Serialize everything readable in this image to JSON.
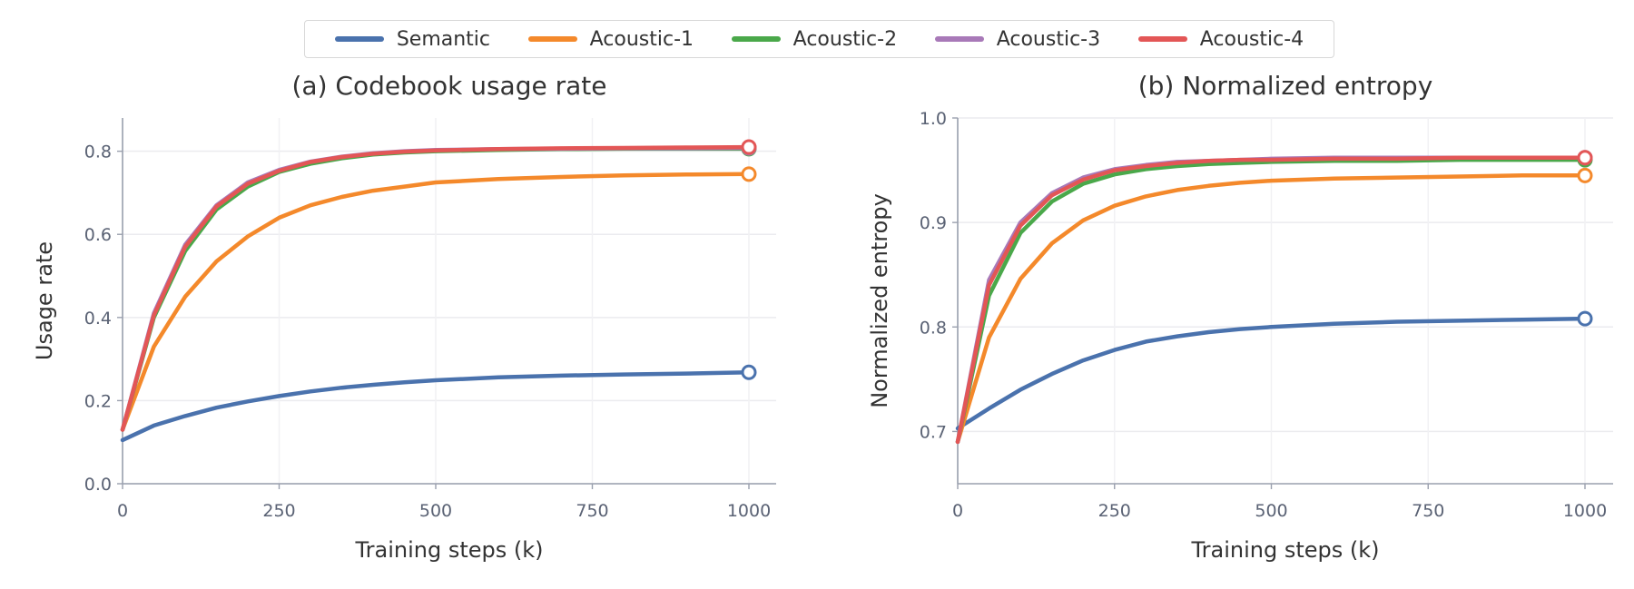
{
  "legend": [
    {
      "label": "Semantic",
      "color": "#4a72ad"
    },
    {
      "label": "Acoustic-1",
      "color": "#f4892b"
    },
    {
      "label": "Acoustic-2",
      "color": "#4aa84a"
    },
    {
      "label": "Acoustic-3",
      "color": "#a879b8"
    },
    {
      "label": "Acoustic-4",
      "color": "#e35656"
    }
  ],
  "chart_data": [
    {
      "type": "line",
      "title": "(a) Codebook usage rate",
      "xlabel": "Training steps (k)",
      "ylabel": "Usage rate",
      "xlim": [
        0,
        1040
      ],
      "ylim": [
        0,
        0.88
      ],
      "xticks": [
        0,
        250,
        500,
        750,
        1000
      ],
      "yticks": [
        0.0,
        0.2,
        0.4,
        0.6,
        0.8
      ],
      "ytick_labels": [
        "0.0",
        "0.2",
        "0.4",
        "0.6",
        "0.8"
      ],
      "grid": true,
      "x": [
        0,
        50,
        100,
        150,
        200,
        250,
        300,
        350,
        400,
        450,
        500,
        600,
        700,
        800,
        900,
        1000
      ],
      "series": [
        {
          "name": "Semantic",
          "color": "#4a72ad",
          "values": [
            0.105,
            0.14,
            0.163,
            0.183,
            0.198,
            0.211,
            0.222,
            0.231,
            0.238,
            0.244,
            0.249,
            0.256,
            0.26,
            0.263,
            0.265,
            0.268
          ]
        },
        {
          "name": "Acoustic-1",
          "color": "#f4892b",
          "values": [
            0.13,
            0.33,
            0.45,
            0.535,
            0.595,
            0.64,
            0.67,
            0.69,
            0.705,
            0.715,
            0.725,
            0.733,
            0.738,
            0.742,
            0.744,
            0.745
          ]
        },
        {
          "name": "Acoustic-2",
          "color": "#4aa84a",
          "values": [
            0.13,
            0.4,
            0.56,
            0.66,
            0.715,
            0.75,
            0.77,
            0.783,
            0.792,
            0.797,
            0.8,
            0.803,
            0.805,
            0.806,
            0.806,
            0.806
          ]
        },
        {
          "name": "Acoustic-3",
          "color": "#a879b8",
          "values": [
            0.13,
            0.41,
            0.575,
            0.67,
            0.725,
            0.755,
            0.775,
            0.787,
            0.795,
            0.8,
            0.803,
            0.805,
            0.806,
            0.807,
            0.807,
            0.808
          ]
        },
        {
          "name": "Acoustic-4",
          "color": "#e35656",
          "values": [
            0.13,
            0.405,
            0.57,
            0.667,
            0.722,
            0.753,
            0.774,
            0.786,
            0.794,
            0.799,
            0.802,
            0.805,
            0.807,
            0.808,
            0.809,
            0.81
          ]
        }
      ]
    },
    {
      "type": "line",
      "title": "(b) Normalized entropy",
      "xlabel": "Training steps (k)",
      "ylabel": "Normalized entropy",
      "xlim": [
        0,
        1040
      ],
      "ylim": [
        0.65,
        1.0
      ],
      "xticks": [
        0,
        250,
        500,
        750,
        1000
      ],
      "yticks": [
        0.7,
        0.8,
        0.9,
        1.0
      ],
      "ytick_labels": [
        "0.7",
        "0.8",
        "0.9",
        "1.0"
      ],
      "grid": true,
      "x": [
        0,
        50,
        100,
        150,
        200,
        250,
        300,
        350,
        400,
        450,
        500,
        600,
        700,
        800,
        900,
        1000
      ],
      "series": [
        {
          "name": "Semantic",
          "color": "#4a72ad",
          "values": [
            0.703,
            0.722,
            0.74,
            0.755,
            0.768,
            0.778,
            0.786,
            0.791,
            0.795,
            0.798,
            0.8,
            0.803,
            0.805,
            0.806,
            0.807,
            0.808
          ]
        },
        {
          "name": "Acoustic-1",
          "color": "#f4892b",
          "values": [
            0.69,
            0.79,
            0.846,
            0.88,
            0.902,
            0.916,
            0.925,
            0.931,
            0.935,
            0.938,
            0.94,
            0.942,
            0.943,
            0.944,
            0.945,
            0.945
          ]
        },
        {
          "name": "Acoustic-2",
          "color": "#4aa84a",
          "values": [
            0.69,
            0.83,
            0.89,
            0.92,
            0.937,
            0.946,
            0.951,
            0.954,
            0.956,
            0.957,
            0.958,
            0.959,
            0.959,
            0.96,
            0.96,
            0.96
          ]
        },
        {
          "name": "Acoustic-3",
          "color": "#a879b8",
          "values": [
            0.69,
            0.845,
            0.9,
            0.928,
            0.943,
            0.951,
            0.955,
            0.958,
            0.959,
            0.96,
            0.961,
            0.962,
            0.962,
            0.962,
            0.962,
            0.962
          ]
        },
        {
          "name": "Acoustic-4",
          "color": "#e35656",
          "values": [
            0.69,
            0.84,
            0.897,
            0.926,
            0.941,
            0.95,
            0.954,
            0.957,
            0.959,
            0.96,
            0.96,
            0.961,
            0.961,
            0.962,
            0.962,
            0.962
          ]
        }
      ]
    }
  ]
}
